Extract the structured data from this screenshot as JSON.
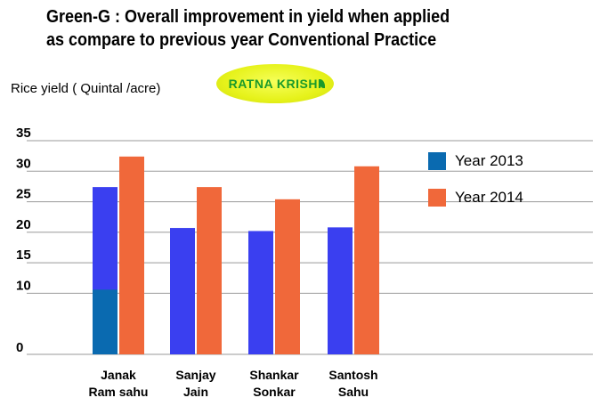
{
  "title_lines": [
    "Green-G : Overall improvement in yield when applied",
    "as compare to previous year Conventional Practice"
  ],
  "logo_text": "RATNA KRISHI",
  "colors": {
    "year_2013": "#3a3ff0",
    "year_2014": "#f0683a",
    "legend_2013": "#0a6ab0",
    "inner_block": "#0a6ab0",
    "grid": "#999999"
  },
  "chart_data": {
    "type": "bar",
    "ylabel": "Rice yield ( Quintal /acre)",
    "xlabel": "",
    "ylim": [
      0,
      35
    ],
    "yticks": [
      0,
      10,
      15,
      20,
      25,
      30,
      35
    ],
    "grid": true,
    "legend_position": "right",
    "categories": [
      [
        "Janak",
        "Ram sahu"
      ],
      [
        "Sanjay",
        "Jain"
      ],
      [
        "Shankar",
        "Sonkar"
      ],
      [
        "Santosh",
        "Sahu"
      ]
    ],
    "series": [
      {
        "name": "Year 2013",
        "values": [
          27.4,
          20.7,
          20.2,
          20.8
        ]
      },
      {
        "name": "Year 2014",
        "values": [
          32.4,
          27.4,
          25.4,
          30.8
        ]
      }
    ],
    "highlight": {
      "category_index": 0,
      "series_index": 0,
      "value": 10.6
    }
  }
}
